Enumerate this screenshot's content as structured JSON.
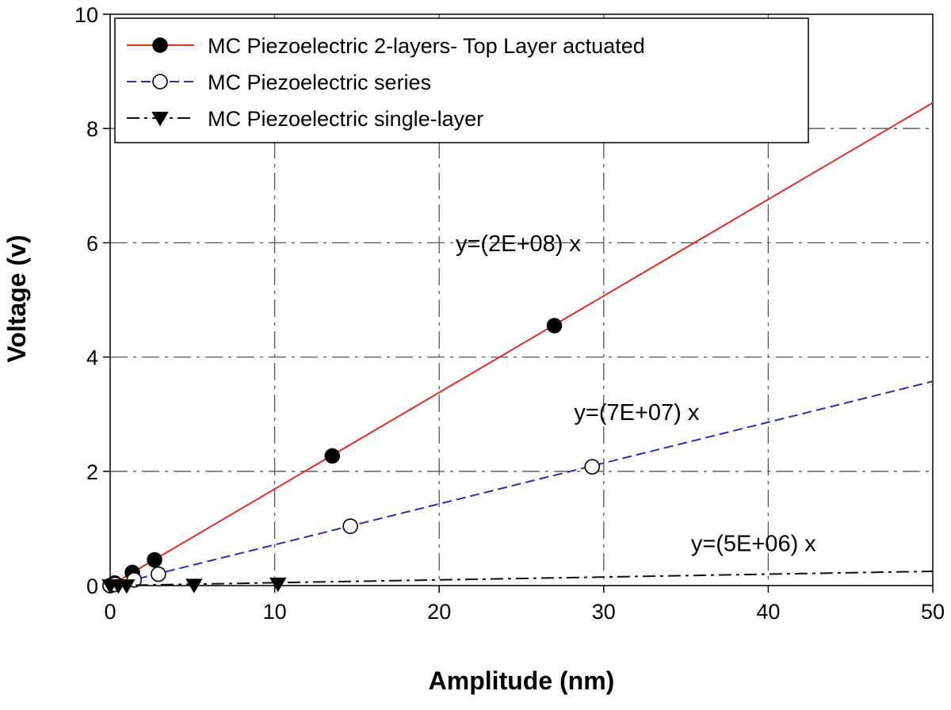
{
  "chart_data": {
    "type": "line",
    "xlabel": "Amplitude (nm)",
    "ylabel": "Voltage (v)",
    "xlim": [
      0,
      50
    ],
    "ylim": [
      0,
      10
    ],
    "x_ticks": [
      0,
      10,
      20,
      30,
      40,
      50
    ],
    "y_ticks": [
      0,
      2,
      4,
      6,
      8,
      10
    ],
    "grid": true,
    "legend_position": "top-left",
    "series": [
      {
        "name": "MC Piezoelectric 2-layers- Top Layer actuated",
        "color": "#d9302a",
        "line_style": "solid",
        "marker": "filled-circle",
        "fit": {
          "slope": 0.169,
          "label": "y=(2E+08) x"
        },
        "points": [
          [
            0,
            0
          ],
          [
            0.27,
            0.045
          ],
          [
            1.35,
            0.23
          ],
          [
            2.7,
            0.45
          ],
          [
            13.5,
            2.27
          ],
          [
            27,
            4.55
          ]
        ]
      },
      {
        "name": "MC Piezoelectric series",
        "color": "#2b2fa8",
        "line_style": "dashed",
        "marker": "open-circle",
        "fit": {
          "slope": 0.0715,
          "label": "y=(7E+07) x"
        },
        "points": [
          [
            0,
            0
          ],
          [
            0.29,
            0.02
          ],
          [
            1.46,
            0.1
          ],
          [
            2.93,
            0.2
          ],
          [
            14.6,
            1.04
          ],
          [
            29.3,
            2.08
          ]
        ]
      },
      {
        "name": "MC Piezoelectric single-layer",
        "color": "#111111",
        "line_style": "dash-dot",
        "marker": "filled-triangle-down",
        "fit": {
          "slope": 0.005,
          "label": "y=(5E+06) x"
        },
        "points": [
          [
            0,
            0
          ],
          [
            0.5,
            0.0
          ],
          [
            1.0,
            0.0
          ],
          [
            5.1,
            0.01
          ],
          [
            10.2,
            0.03
          ]
        ]
      }
    ],
    "annotations": [
      {
        "text": "y=(2E+08) x",
        "x": 21,
        "y": 5.85
      },
      {
        "text": "y=(7E+07) x",
        "x": 28.2,
        "y": 2.9
      },
      {
        "text": "y=(5E+06) x",
        "x": 35.3,
        "y": 0.6
      }
    ]
  }
}
